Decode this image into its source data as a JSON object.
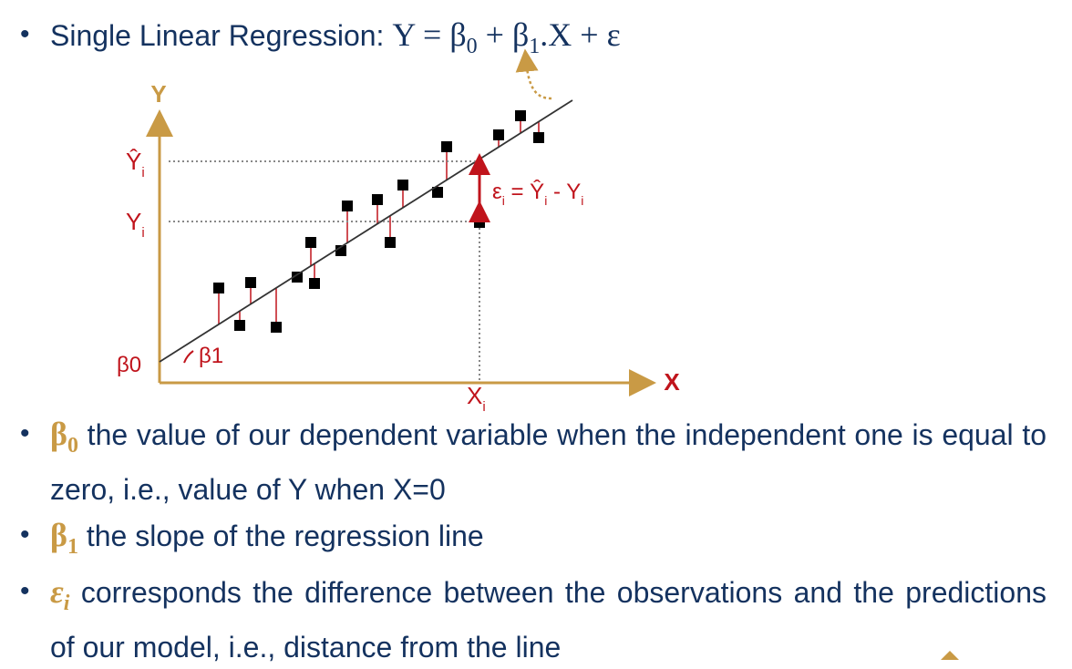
{
  "title_bullet": {
    "label": "Single Linear Regression:",
    "formula": {
      "y": "Y",
      "eq": "=",
      "b": "β",
      "b0_sub": "0",
      "plus": "+",
      "b2": "β",
      "b1_sub": "1",
      "rest": ".X + ε"
    }
  },
  "diagram": {
    "y_axis": "Y",
    "x_axis": "X",
    "y_hat": {
      "base": "Ŷ",
      "sub": "i"
    },
    "y_i": {
      "base": "Y",
      "sub": "i"
    },
    "beta0": "β0",
    "beta1": "β1",
    "x_i": {
      "base": "X",
      "sub": "i"
    },
    "error": {
      "e": "ε",
      "e_sub": "i",
      "eq": " = Ŷ",
      "yhat_sub": "i",
      "minus": " - Y",
      "y_sub": "i"
    }
  },
  "bullets": [
    {
      "symbol": "β",
      "sub": "0",
      "text": "the value of our dependent variable when the independent one is equal to zero, i.e., value of Y when X=0"
    },
    {
      "symbol": "β",
      "sub": "1",
      "text": "the slope of the regression line"
    },
    {
      "symbol": "ε",
      "sub": "i",
      "text": "corresponds the difference between the observations and the predictions of our model, i.e., distance from the line"
    }
  ]
}
